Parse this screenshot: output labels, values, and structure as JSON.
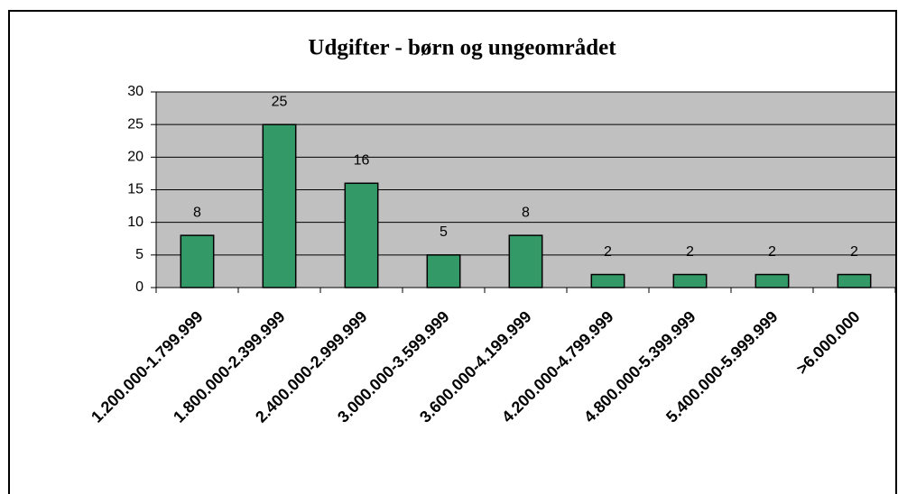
{
  "chart_data": {
    "type": "bar",
    "title": "Udgifter - børn og ungeområdet",
    "categories": [
      "1.200.000-1.799.999",
      "1.800.000-2.399.999",
      "2.400.000-2.999.999",
      "3.000.000-3.599.999",
      "3.600.000-4.199.999",
      "4.200.000-4.799.999",
      "4.800.000-5.399.999",
      "5.400.000-5.999.999",
      ">6.000.000"
    ],
    "values": [
      8,
      25,
      16,
      5,
      8,
      2,
      2,
      2,
      2
    ],
    "color": "#339966",
    "ylim": [
      0,
      30
    ],
    "yticks": [
      0,
      5,
      10,
      15,
      20,
      25,
      30
    ],
    "grid": true
  }
}
